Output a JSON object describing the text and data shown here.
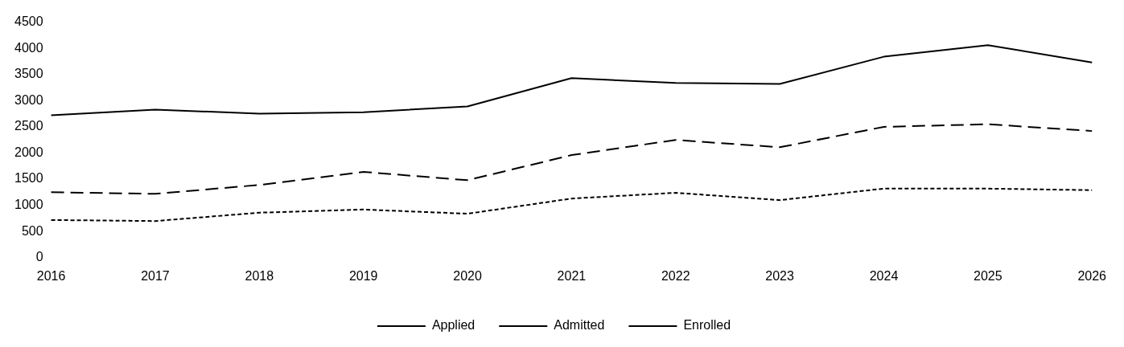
{
  "chart_data": {
    "type": "line",
    "categories": [
      "2016",
      "2017",
      "2018",
      "2019",
      "2020",
      "2021",
      "2022",
      "2023",
      "2024",
      "2025",
      "2026"
    ],
    "series": [
      {
        "name": "Applied",
        "color": "#000000",
        "line_style": "solid",
        "values": [
          2720,
          2830,
          2750,
          2780,
          2890,
          3430,
          3340,
          3320,
          3840,
          4060,
          3730
        ]
      },
      {
        "name": "Admitted",
        "color": "#000000",
        "line_style": "dashed",
        "values": [
          1250,
          1220,
          1390,
          1640,
          1480,
          1960,
          2250,
          2110,
          2500,
          2550,
          2420
        ]
      },
      {
        "name": "Enrolled",
        "color": "#000000",
        "line_style": "dotted",
        "values": [
          720,
          700,
          860,
          920,
          840,
          1130,
          1240,
          1100,
          1320,
          1320,
          1290
        ]
      }
    ],
    "ylim": [
      0,
      4500
    ],
    "yticks": [
      0,
      500,
      1000,
      1500,
      2000,
      2500,
      3000,
      3500,
      4000,
      4500
    ],
    "grid": false,
    "legend": "bottom",
    "marker": "none"
  }
}
